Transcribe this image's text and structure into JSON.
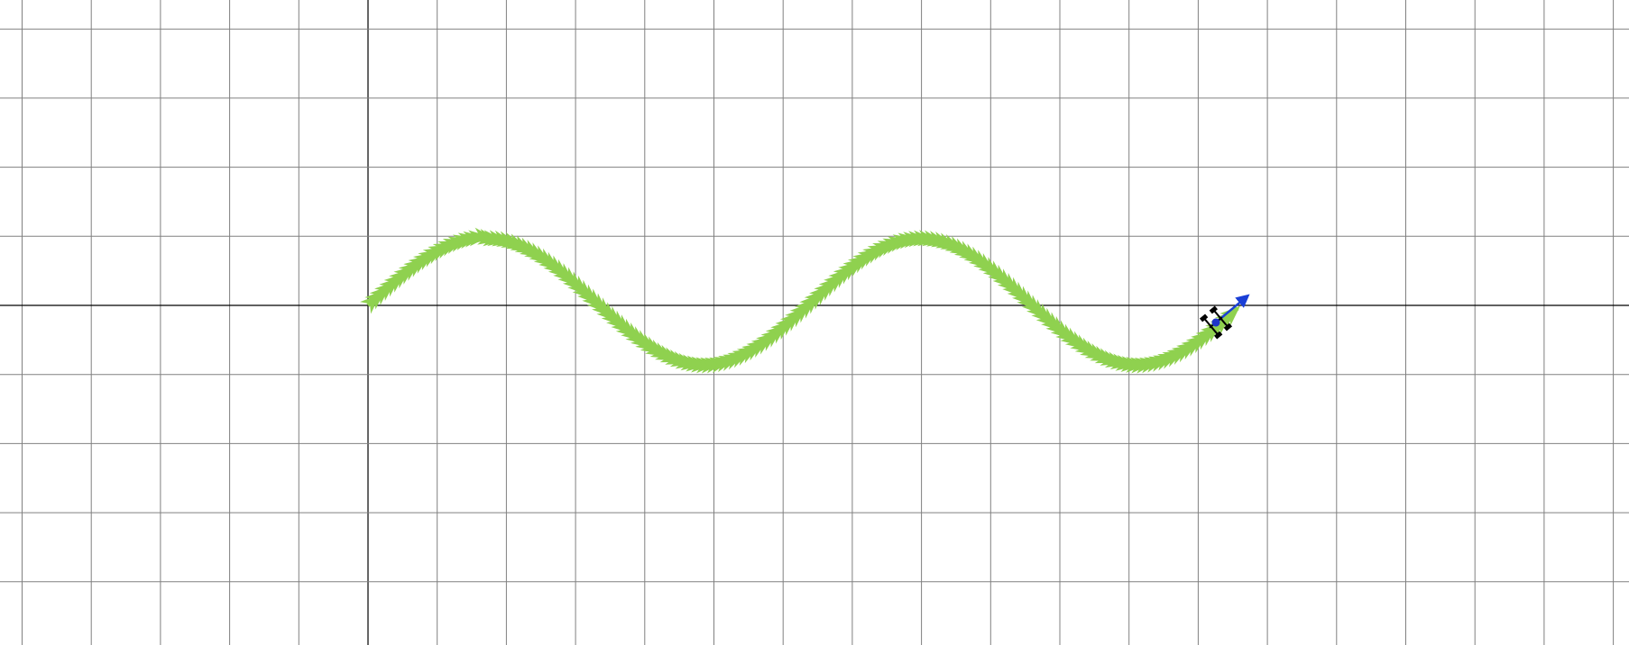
{
  "view": {
    "background": "#ffffff",
    "grid_color": "#808080",
    "grid_origin_color": "#000000"
  },
  "trajectories": {
    "reference": {
      "color": "#8fd14f",
      "marker": "arrow-marker"
    },
    "actual": {
      "color": "#e8321e",
      "marker": "arrow-marker"
    }
  },
  "robot": {
    "icon": "robot-vehicle-icon",
    "body_color": "#000000",
    "center_color": "#1f35c8",
    "heading_arrow_color": "#1a3fd6"
  }
}
